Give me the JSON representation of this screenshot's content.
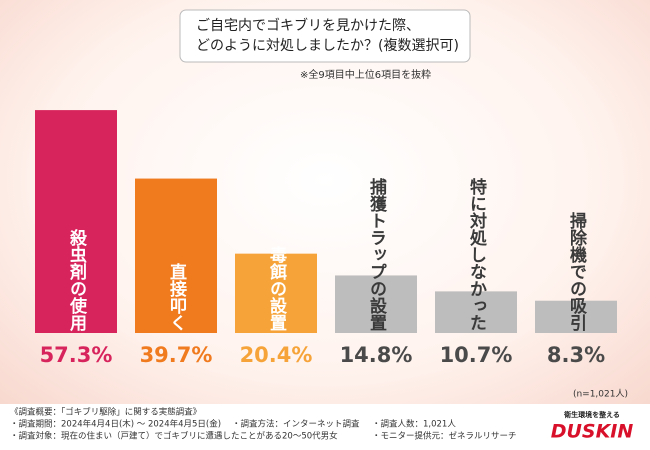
{
  "chart_data": {
    "type": "bar",
    "title": [
      "ご自宅内でゴキブリを見かけた際、",
      "どのように対処しましたか？(複数選択可)"
    ],
    "subtitle": "※全9項目中上位6項目を抜粋",
    "categories": [
      "殺虫剤の使用",
      "直接叩く",
      "毒餌の設置",
      "捕獲トラップの設置",
      "特に対処しなかった",
      "掃除機での吸引"
    ],
    "values": [
      57.3,
      39.7,
      20.4,
      14.8,
      10.7,
      8.3
    ],
    "value_labels": [
      "57.3%",
      "39.7%",
      "20.4%",
      "14.8%",
      "10.7%",
      "8.3%"
    ],
    "colors": [
      "#d8245c",
      "#f07a1e",
      "#f6a43a",
      "#bdbdbd",
      "#bdbdbd",
      "#bdbdbd"
    ],
    "label_colors": [
      "#ffffff",
      "#ffffff",
      "#ffffff",
      "#3a3a3a",
      "#3a3a3a",
      "#3a3a3a"
    ],
    "value_label_colors": [
      "#d8245c",
      "#f07a1e",
      "#f6a43a",
      "#4a4a4a",
      "#4a4a4a",
      "#4a4a4a"
    ],
    "sample_note": "(n=1,021人)"
  },
  "footer": {
    "lines": [
      "《調査概要：「ゴキブリ駆除」に関する実態調査》",
      "・調査期間：2024年4月4日(木) ～ 2024年4月5日(金)",
      "・調査方法：インターネット調査",
      "・調査人数：1,021人",
      "・調査対象：現在の住まい（戸建て）でゴキブリに遭遇したことがある20～50代男女",
      "・モニター提供元：ゼネラルリサーチ"
    ],
    "logo_tagline": "衛生環境を整える",
    "logo": "DUSKIN"
  }
}
